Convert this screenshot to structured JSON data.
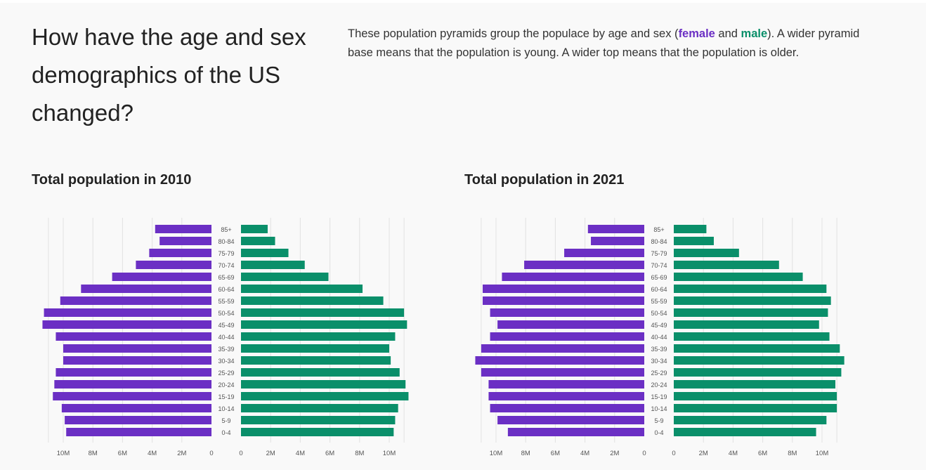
{
  "header": {
    "title": "How have the age and sex demographics of the US changed?",
    "intro_before": "These population pyramids group the populace by age and sex (",
    "female_label": "female",
    "and_text": " and ",
    "male_label": "male",
    "intro_after": "). A wider pyramid base means that the population is young. A wider top means that the population is older."
  },
  "colors": {
    "female": "#6b2fc4",
    "male": "#0a8f6a",
    "grid": "#e2e2e2",
    "label": "#555555"
  },
  "chart_data": [
    {
      "type": "bar",
      "title": "Total population in 2010",
      "categories": [
        "85+",
        "80-84",
        "75-79",
        "70-74",
        "65-69",
        "60-64",
        "55-59",
        "50-54",
        "45-49",
        "40-44",
        "35-39",
        "30-34",
        "25-29",
        "20-24",
        "15-19",
        "10-14",
        "5-9",
        "0-4"
      ],
      "series": [
        {
          "name": "female",
          "values": [
            3.8,
            3.5,
            4.2,
            5.1,
            6.7,
            8.8,
            10.2,
            11.3,
            11.4,
            10.5,
            10.0,
            10.0,
            10.5,
            10.6,
            10.7,
            10.1,
            9.9,
            9.8
          ]
        },
        {
          "name": "male",
          "values": [
            1.8,
            2.3,
            3.2,
            4.3,
            5.9,
            8.2,
            9.6,
            11.0,
            11.2,
            10.4,
            10.0,
            10.1,
            10.7,
            11.1,
            11.3,
            10.6,
            10.4,
            10.3
          ]
        }
      ],
      "xticks": [
        "10M",
        "8M",
        "6M",
        "4M",
        "2M",
        "0",
        "0",
        "2M",
        "4M",
        "6M",
        "8M",
        "10M"
      ],
      "xlim": [
        0,
        12
      ]
    },
    {
      "type": "bar",
      "title": "Total population in 2021",
      "categories": [
        "85+",
        "80-84",
        "75-79",
        "70-74",
        "65-69",
        "60-64",
        "55-59",
        "50-54",
        "45-49",
        "40-44",
        "35-39",
        "30-34",
        "25-29",
        "20-24",
        "15-19",
        "10-14",
        "5-9",
        "0-4"
      ],
      "series": [
        {
          "name": "female",
          "values": [
            3.8,
            3.6,
            5.4,
            8.1,
            9.6,
            10.9,
            10.9,
            10.4,
            9.9,
            10.4,
            11.0,
            11.4,
            11.0,
            10.5,
            10.5,
            10.4,
            9.9,
            9.2
          ]
        },
        {
          "name": "male",
          "values": [
            2.2,
            2.7,
            4.4,
            7.1,
            8.7,
            10.3,
            10.6,
            10.4,
            9.8,
            10.5,
            11.2,
            11.5,
            11.3,
            10.9,
            11.0,
            11.0,
            10.3,
            9.6
          ]
        }
      ],
      "xticks": [
        "10M",
        "8M",
        "6M",
        "4M",
        "2M",
        "0",
        "0",
        "2M",
        "4M",
        "6M",
        "8M",
        "10M"
      ],
      "xlim": [
        0,
        12
      ]
    }
  ]
}
